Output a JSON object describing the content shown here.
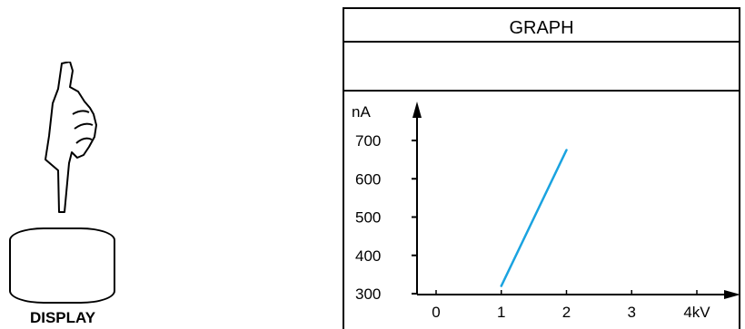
{
  "button": {
    "label": "DISPLAY"
  },
  "screen": {
    "title": "GRAPH"
  },
  "chart_data": {
    "type": "line",
    "title": "GRAPH",
    "x_unit": "kV",
    "y_unit": "nA",
    "x_ticks": [
      "0",
      "1",
      "2",
      "3",
      "4kV"
    ],
    "y_ticks": [
      "300",
      "400",
      "500",
      "600",
      "700"
    ],
    "xlim": [
      0,
      4
    ],
    "ylim": [
      300,
      700
    ],
    "series": [
      {
        "x": [
          1,
          2
        ],
        "y": [
          320,
          675
        ]
      }
    ],
    "line_color": "#1aa3e0",
    "grid": false
  }
}
